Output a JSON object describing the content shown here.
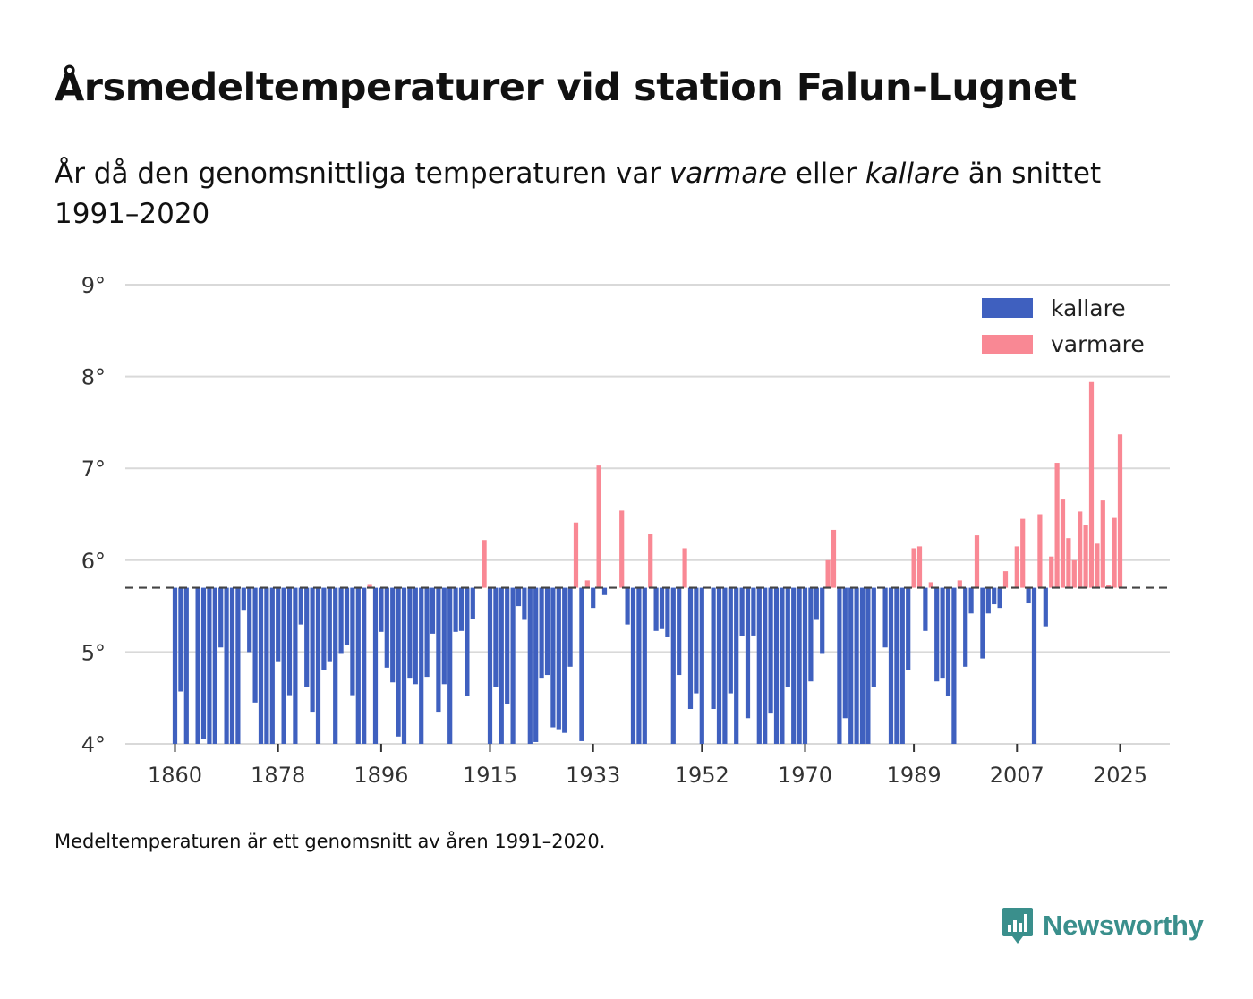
{
  "title": "Årsmedeltemperaturer vid station Falun-Lugnet",
  "subtitle": {
    "prefix": "År då den genomsnittliga temperaturen var ",
    "warm_word": "varmare",
    "middle": " eller ",
    "cold_word": "kallare",
    "suffix": " än snittet 1991–2020"
  },
  "footnote": "Medeltemperaturen är ett genomsnitt av åren 1991–2020.",
  "brand": {
    "name": "Newsworthy",
    "icon": "newsworthy-logo-icon"
  },
  "colors": {
    "cold": "#3f60bf",
    "warm": "#f98894",
    "grid": "#d9d9d9",
    "reference_line": "#444444",
    "brand": "#3a8f8c"
  },
  "chart_data": {
    "type": "bar",
    "title": "Årsmedeltemperaturer vid station Falun-Lugnet",
    "xlabel": "",
    "ylabel": "",
    "ylim": [
      4,
      9
    ],
    "y_ticks": [
      4,
      5,
      6,
      7,
      8,
      9
    ],
    "y_tick_labels": [
      "4°",
      "5°",
      "6°",
      "7°",
      "8°",
      "9°"
    ],
    "x_ticks": [
      1860,
      1878,
      1896,
      1915,
      1933,
      1952,
      1970,
      1989,
      2007,
      2025
    ],
    "x_tick_labels": [
      "1860",
      "1878",
      "1896",
      "1915",
      "1933",
      "1952",
      "1970",
      "1989",
      "2007",
      "2025"
    ],
    "baseline": 5.7,
    "baseline_label": "snittet 1991–2020",
    "grid": true,
    "legend_position": "top-right",
    "series": [
      {
        "name": "kallare",
        "color_key": "cold"
      },
      {
        "name": "varmare",
        "color_key": "warm"
      }
    ],
    "years": [
      1860,
      1861,
      1862,
      1863,
      1864,
      1865,
      1866,
      1867,
      1868,
      1869,
      1870,
      1871,
      1872,
      1873,
      1874,
      1875,
      1876,
      1877,
      1878,
      1879,
      1880,
      1881,
      1882,
      1883,
      1884,
      1885,
      1886,
      1887,
      1888,
      1889,
      1890,
      1891,
      1892,
      1893,
      1894,
      1895,
      1896,
      1897,
      1898,
      1899,
      1900,
      1901,
      1902,
      1903,
      1904,
      1905,
      1906,
      1907,
      1908,
      1909,
      1910,
      1911,
      1912,
      1913,
      1914,
      1915,
      1916,
      1917,
      1918,
      1919,
      1920,
      1921,
      1922,
      1923,
      1924,
      1925,
      1926,
      1927,
      1928,
      1929,
      1930,
      1931,
      1932,
      1933,
      1934,
      1935,
      1936,
      1937,
      1938,
      1939,
      1940,
      1941,
      1942,
      1943,
      1944,
      1945,
      1946,
      1947,
      1948,
      1949,
      1950,
      1951,
      1952,
      1953,
      1954,
      1955,
      1956,
      1957,
      1958,
      1959,
      1960,
      1961,
      1962,
      1963,
      1964,
      1965,
      1966,
      1967,
      1968,
      1969,
      1970,
      1971,
      1972,
      1973,
      1974,
      1975,
      1976,
      1977,
      1978,
      1979,
      1980,
      1981,
      1982,
      1983,
      1984,
      1985,
      1986,
      1987,
      1988,
      1989,
      1990,
      1991,
      1992,
      1993,
      1994,
      1995,
      1996,
      1997,
      1998,
      1999,
      2000,
      2001,
      2002,
      2003,
      2004,
      2005,
      2006,
      2007,
      2008,
      2009,
      2010,
      2011,
      2012,
      2013,
      2014,
      2015,
      2016,
      2017,
      2018,
      2019,
      2020,
      2021,
      2022,
      2023,
      2024,
      2025
    ],
    "values": [
      4.0,
      4.57,
      4.0,
      null,
      4.0,
      4.05,
      4.0,
      4.0,
      5.05,
      4.0,
      4.0,
      4.0,
      5.45,
      5.0,
      4.45,
      4.0,
      4.0,
      4.0,
      4.9,
      4.0,
      4.53,
      4.0,
      5.3,
      4.62,
      4.35,
      4.0,
      4.8,
      4.9,
      4.0,
      4.98,
      5.08,
      4.53,
      4.0,
      4.0,
      5.74,
      4.0,
      5.22,
      4.83,
      4.67,
      4.08,
      4.0,
      4.72,
      4.65,
      4.0,
      4.73,
      5.2,
      4.35,
      4.65,
      4.0,
      5.22,
      5.23,
      4.52,
      5.36,
      null,
      6.22,
      4.0,
      4.62,
      4.0,
      4.43,
      4.0,
      5.5,
      5.35,
      4.0,
      4.02,
      4.72,
      4.75,
      4.18,
      4.16,
      4.12,
      4.84,
      6.41,
      4.03,
      5.78,
      5.48,
      7.03,
      5.62,
      null,
      null,
      6.54,
      5.3,
      4.0,
      4.0,
      4.0,
      6.29,
      5.23,
      5.25,
      5.16,
      4.0,
      4.75,
      6.13,
      4.38,
      4.55,
      4.0,
      null,
      4.38,
      4.0,
      4.0,
      4.55,
      4.0,
      5.17,
      4.28,
      5.18,
      4.0,
      4.0,
      4.33,
      4.0,
      4.0,
      4.62,
      4.0,
      4.0,
      4.0,
      4.68,
      5.35,
      4.98,
      6.0,
      6.33,
      4.0,
      4.28,
      4.0,
      4.0,
      4.0,
      4.0,
      4.62,
      null,
      5.05,
      4.0,
      4.0,
      4.0,
      4.8,
      6.13,
      6.15,
      5.23,
      5.76,
      4.68,
      4.72,
      4.52,
      4.0,
      5.78,
      4.84,
      5.42,
      6.27,
      4.93,
      5.42,
      5.52,
      5.48,
      5.88,
      null,
      6.15,
      6.45,
      5.53,
      4.0,
      6.5,
      5.28,
      6.04,
      7.06,
      6.66,
      6.24,
      6.0,
      6.53,
      6.38,
      7.94,
      6.18,
      6.65,
      5.73,
      6.46,
      7.37
    ]
  }
}
